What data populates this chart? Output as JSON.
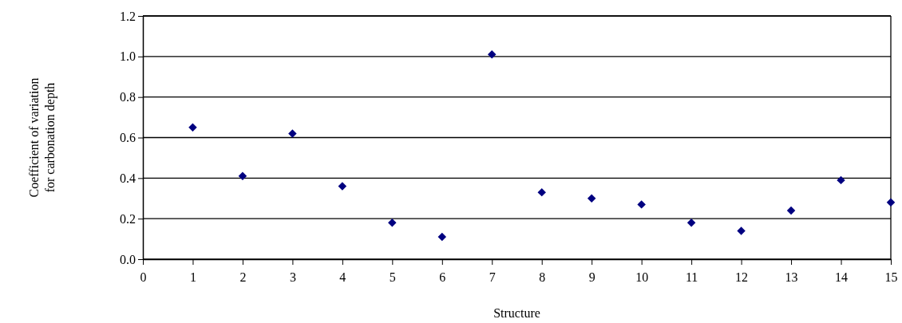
{
  "chart_data": {
    "type": "scatter",
    "xlabel": "Structure",
    "ylabel": "Coefficient of variation\nfor carbonation depth",
    "x": [
      1,
      2,
      3,
      4,
      5,
      6,
      7,
      8,
      9,
      10,
      11,
      12,
      13,
      14,
      15
    ],
    "values": [
      0.65,
      0.41,
      0.62,
      0.36,
      0.18,
      0.11,
      1.01,
      0.33,
      0.3,
      0.27,
      0.18,
      0.14,
      0.24,
      0.39,
      0.28
    ],
    "color": "#000080",
    "marker": "diamond",
    "grid": "y",
    "xlim": [
      0,
      15
    ],
    "xticks": [
      0,
      1,
      2,
      3,
      4,
      5,
      6,
      7,
      8,
      9,
      10,
      11,
      12,
      13,
      14,
      15
    ],
    "ylim": [
      0,
      1.2
    ],
    "yticks": [
      {
        "value": 0,
        "label": "0.0"
      },
      {
        "value": 0.2,
        "label": "0.2"
      },
      {
        "value": 0.4,
        "label": "0.4"
      },
      {
        "value": 0.6,
        "label": "0.6"
      },
      {
        "value": 0.8,
        "label": "0.8"
      },
      {
        "value": 1,
        "label": "1.0"
      },
      {
        "value": 1.2,
        "label": "1.2"
      }
    ]
  }
}
